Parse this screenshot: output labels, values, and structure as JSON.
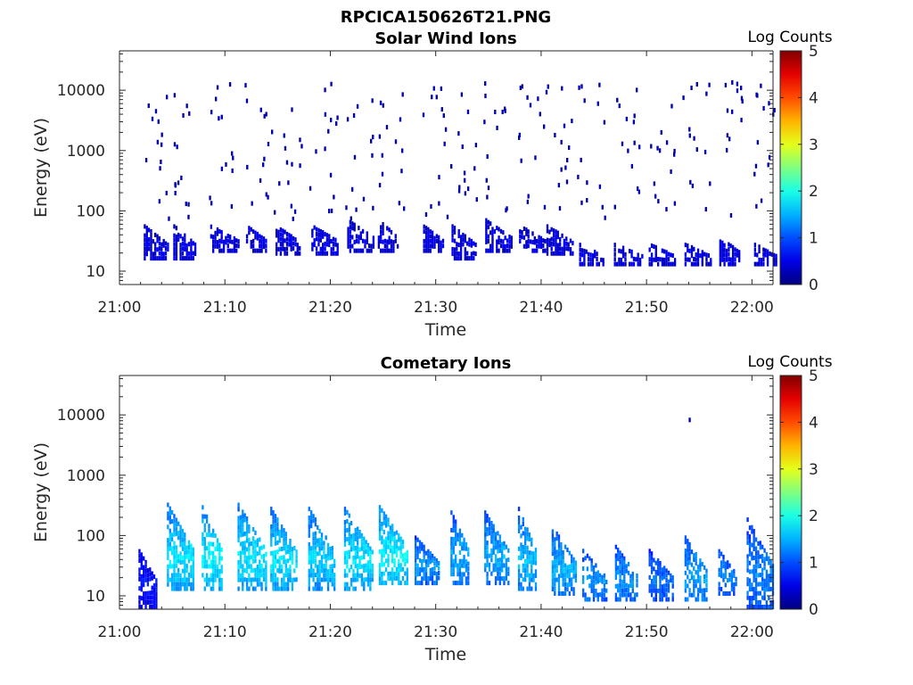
{
  "figure_title": "RPCICA150626T21.PNG",
  "chart_data": [
    {
      "type": "heatmap",
      "title": "Solar Wind Ions",
      "xlabel": "Time",
      "ylabel": "Energy (eV)",
      "x_ticks": [
        "21:00",
        "21:10",
        "21:20",
        "21:30",
        "21:40",
        "21:50",
        "22:00"
      ],
      "x_range_minutes": [
        0,
        62
      ],
      "y_scale": "log",
      "y_ticks": [
        10,
        100,
        1000,
        10000
      ],
      "y_tick_labels": [
        "10",
        "100",
        "1000",
        "10000"
      ],
      "y_range": [
        6,
        45000
      ],
      "colorbar": {
        "label": "Log Counts",
        "range": [
          0,
          5
        ],
        "ticks": [
          "0",
          "1",
          "2",
          "3",
          "4",
          "5"
        ],
        "colormap": "jet"
      },
      "bursts": [
        {
          "t": 3.3,
          "lo": 15,
          "hi": 60,
          "v": 0.3
        },
        {
          "t": 6.1,
          "lo": 15,
          "hi": 60,
          "v": 0.3
        },
        {
          "t": 9.6,
          "lo": 20,
          "hi": 60,
          "v": 0.3
        },
        {
          "t": 13.0,
          "lo": 20,
          "hi": 60,
          "v": 0.3
        },
        {
          "t": 15.8,
          "lo": 18,
          "hi": 60,
          "v": 0.3
        },
        {
          "t": 19.2,
          "lo": 18,
          "hi": 60,
          "v": 0.3
        },
        {
          "t": 22.6,
          "lo": 20,
          "hi": 75,
          "v": 0.3
        },
        {
          "t": 25.5,
          "lo": 20,
          "hi": 75,
          "v": 0.3
        },
        {
          "t": 29.8,
          "lo": 20,
          "hi": 60,
          "v": 0.3
        },
        {
          "t": 32.5,
          "lo": 15,
          "hi": 60,
          "v": 0.3
        },
        {
          "t": 35.7,
          "lo": 20,
          "hi": 75,
          "v": 0.3
        },
        {
          "t": 38.9,
          "lo": 20,
          "hi": 60,
          "v": 0.3
        },
        {
          "t": 41.5,
          "lo": 18,
          "hi": 60,
          "v": 0.3
        },
        {
          "t": 44.6,
          "lo": 12,
          "hi": 30,
          "v": 0.3
        },
        {
          "t": 47.9,
          "lo": 12,
          "hi": 30,
          "v": 0.3
        },
        {
          "t": 51.2,
          "lo": 12,
          "hi": 30,
          "v": 0.3
        },
        {
          "t": 54.6,
          "lo": 12,
          "hi": 30,
          "v": 0.3
        },
        {
          "t": 57.9,
          "lo": 12,
          "hi": 40,
          "v": 0.3
        },
        {
          "t": 61.2,
          "lo": 12,
          "hi": 30,
          "v": 0.3
        }
      ],
      "scatter_range": [
        80,
        15000
      ]
    },
    {
      "type": "heatmap",
      "title": "Cometary Ions",
      "xlabel": "Time",
      "ylabel": "Energy (eV)",
      "x_ticks": [
        "21:00",
        "21:10",
        "21:20",
        "21:30",
        "21:40",
        "21:50",
        "22:00"
      ],
      "x_range_minutes": [
        0,
        62
      ],
      "y_scale": "log",
      "y_ticks": [
        10,
        100,
        1000,
        10000
      ],
      "y_tick_labels": [
        "10",
        "100",
        "1000",
        "10000"
      ],
      "y_range": [
        6,
        45000
      ],
      "colorbar": {
        "label": "Log Counts",
        "range": [
          0,
          5
        ],
        "ticks": [
          "0",
          "1",
          "2",
          "3",
          "4",
          "5"
        ],
        "colormap": "jet"
      },
      "bursts": [
        {
          "t": 2.8,
          "lo": 6,
          "hi": 60,
          "v": 0.5
        },
        {
          "t": 5.5,
          "lo": 12,
          "hi": 350,
          "v": 1.6
        },
        {
          "t": 8.8,
          "lo": 12,
          "hi": 320,
          "v": 1.7
        },
        {
          "t": 12.2,
          "lo": 12,
          "hi": 350,
          "v": 1.6
        },
        {
          "t": 15.3,
          "lo": 12,
          "hi": 300,
          "v": 1.6
        },
        {
          "t": 18.9,
          "lo": 12,
          "hi": 300,
          "v": 1.5
        },
        {
          "t": 22.3,
          "lo": 12,
          "hi": 300,
          "v": 1.6
        },
        {
          "t": 25.6,
          "lo": 15,
          "hi": 320,
          "v": 1.7
        },
        {
          "t": 29.0,
          "lo": 15,
          "hi": 100,
          "v": 1.2
        },
        {
          "t": 32.4,
          "lo": 15,
          "hi": 260,
          "v": 1.3
        },
        {
          "t": 35.6,
          "lo": 15,
          "hi": 260,
          "v": 1.3
        },
        {
          "t": 38.8,
          "lo": 12,
          "hi": 300,
          "v": 1.4
        },
        {
          "t": 42.0,
          "lo": 10,
          "hi": 150,
          "v": 1.3
        },
        {
          "t": 44.9,
          "lo": 8,
          "hi": 60,
          "v": 1.2
        },
        {
          "t": 48.0,
          "lo": 8,
          "hi": 70,
          "v": 1.2
        },
        {
          "t": 51.2,
          "lo": 8,
          "hi": 60,
          "v": 1.0
        },
        {
          "t": 54.6,
          "lo": 8,
          "hi": 100,
          "v": 1.3
        },
        {
          "t": 57.8,
          "lo": 10,
          "hi": 60,
          "v": 1.1
        },
        {
          "t": 60.5,
          "lo": 6,
          "hi": 200,
          "v": 1.1
        }
      ],
      "outliers": [
        {
          "t": 54.0,
          "e": 9000
        }
      ]
    }
  ]
}
